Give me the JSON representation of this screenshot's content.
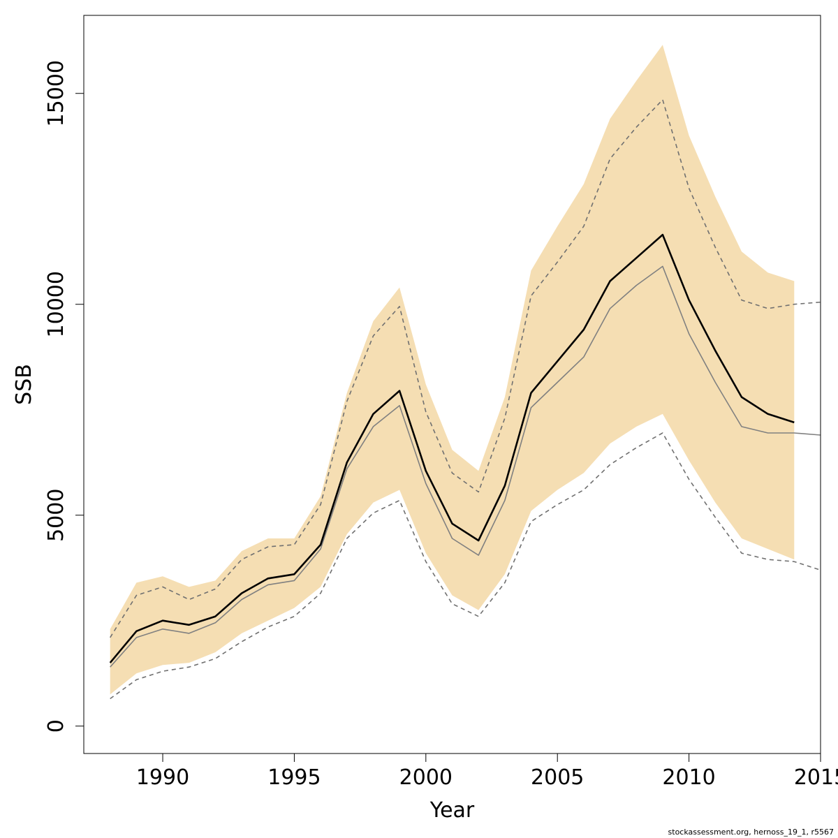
{
  "chart_data": {
    "type": "line",
    "xlabel": "Year",
    "ylabel": "SSB",
    "xlim": [
      1987,
      2015
    ],
    "ylim": [
      -650,
      16850
    ],
    "x_ticks": [
      1990,
      1995,
      2000,
      2005,
      2010,
      2015
    ],
    "x_tick_labels": [
      "1990",
      "1995",
      "2000",
      "2005",
      "2010",
      "2015"
    ],
    "y_ticks": [
      0,
      5000,
      10000,
      15000
    ],
    "y_tick_labels": [
      "0",
      "5000",
      "10000",
      "15000"
    ],
    "colors": {
      "band": "#f5deb3",
      "estimate": "#000000",
      "reference": "#808080",
      "bounds": "#707070"
    },
    "band": {
      "x": [
        1988,
        1989,
        1990,
        1991,
        1992,
        1993,
        1994,
        1995,
        1996,
        1997,
        1998,
        1999,
        2000,
        2001,
        2002,
        2003,
        2004,
        2005,
        2006,
        2007,
        2008,
        2009,
        2010,
        2011,
        2012,
        2013,
        2014
      ],
      "lower": [
        750,
        1250,
        1450,
        1500,
        1750,
        2200,
        2500,
        2800,
        3300,
        4550,
        5300,
        5600,
        4100,
        3100,
        2750,
        3600,
        5100,
        5600,
        6000,
        6700,
        7100,
        7400,
        6300,
        5300,
        4450,
        4200,
        3950
      ],
      "upper": [
        2300,
        3400,
        3550,
        3300,
        3450,
        4150,
        4450,
        4450,
        5450,
        7900,
        9600,
        10400,
        8100,
        6550,
        6050,
        7800,
        10800,
        11850,
        12850,
        14400,
        15300,
        16150,
        14000,
        12550,
        11250,
        10750,
        10550
      ]
    },
    "series": [
      {
        "line": "solid",
        "color": "#000000",
        "x": [
          1988,
          1989,
          1990,
          1991,
          1992,
          1993,
          1994,
          1995,
          1996,
          1997,
          1998,
          1999,
          2000,
          2001,
          2002,
          2003,
          2004,
          2005,
          2006,
          2007,
          2008,
          2009,
          2010,
          2011,
          2012,
          2013,
          2014
        ],
        "values": [
          1500,
          2250,
          2500,
          2400,
          2600,
          3150,
          3500,
          3600,
          4300,
          6250,
          7400,
          7950,
          6050,
          4800,
          4400,
          5700,
          7900,
          8650,
          9400,
          10550,
          11100,
          11650,
          10100,
          8900,
          7800,
          7400,
          7200
        ]
      },
      {
        "line": "solid",
        "color": "#808080",
        "x": [
          1988,
          1989,
          1990,
          1991,
          1992,
          1993,
          1994,
          1995,
          1996,
          1997,
          1998,
          1999,
          2000,
          2001,
          2002,
          2003,
          2004,
          2005,
          2006,
          2007,
          2008,
          2009,
          2010,
          2011,
          2012,
          2013,
          2014,
          2015
        ],
        "values": [
          1400,
          2100,
          2300,
          2200,
          2450,
          3000,
          3350,
          3450,
          4200,
          6100,
          7100,
          7600,
          5750,
          4450,
          4050,
          5350,
          7550,
          8150,
          8750,
          9900,
          10450,
          10900,
          9300,
          8150,
          7100,
          6950,
          6950,
          6900
        ]
      },
      {
        "line": "dashed",
        "color": "#707070",
        "x": [
          1988,
          1989,
          1990,
          1991,
          1992,
          1993,
          1994,
          1995,
          1996,
          1997,
          1998,
          1999,
          2000,
          2001,
          2002,
          2003,
          2004,
          2005,
          2006,
          2007,
          2008,
          2009,
          2010,
          2011,
          2012,
          2013,
          2014,
          2015
        ],
        "values": [
          2100,
          3100,
          3300,
          3000,
          3250,
          3950,
          4250,
          4300,
          5250,
          7700,
          9250,
          9950,
          7450,
          6000,
          5550,
          7300,
          10200,
          11000,
          11850,
          13450,
          14200,
          14850,
          12750,
          11350,
          10100,
          9900,
          10000,
          10050
        ]
      },
      {
        "line": "dashed",
        "color": "#707070",
        "x": [
          1988,
          1989,
          1990,
          1991,
          1992,
          1993,
          1994,
          1995,
          1996,
          1997,
          1998,
          1999,
          2000,
          2001,
          2002,
          2003,
          2004,
          2005,
          2006,
          2007,
          2008,
          2009,
          2010,
          2011,
          2012,
          2013,
          2014,
          2015
        ],
        "values": [
          650,
          1100,
          1300,
          1400,
          1600,
          2000,
          2350,
          2600,
          3150,
          4450,
          5050,
          5350,
          3900,
          2900,
          2600,
          3400,
          4850,
          5250,
          5600,
          6200,
          6600,
          6950,
          5850,
          4950,
          4100,
          3950,
          3900,
          3700
        ]
      }
    ],
    "grid": false,
    "legend": "none"
  },
  "credit": "stockassessment.org, hernoss_19_1, r5567"
}
